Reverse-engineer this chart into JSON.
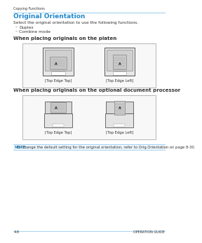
{
  "bg_color": "#ffffff",
  "header_text": "Copying Functions",
  "header_line_color": "#99ccee",
  "title": "Original Orientation",
  "title_color": "#2288cc",
  "title_fontsize": 6.5,
  "body_text": "Select the original orientation to use the following functions.",
  "bullet_items": [
    "Duplex",
    "Combine mode"
  ],
  "section1_title": "When placing originals on the platen",
  "section2_title": "When placing originals on the optional document processor",
  "label_top_edge_top": "[Top Edge Top]",
  "label_top_edge_left": "[Top Edge Left]",
  "note_bold": "NOTE:",
  "note_text": "  To change the default setting for the original orientation, refer to Orig.Orientation on page 8-30.",
  "note_color": "#2288cc",
  "footer_left": "4-8",
  "footer_right": "OPERATION GUIDE",
  "footer_line_color": "#99ccee",
  "box_border_color": "#aaaaaa",
  "copier_body_color": "#e0e0e0",
  "copier_dark_color": "#888888",
  "copier_outline_color": "#555555",
  "paper_color": "#d0d0d0",
  "paper_border_color": "#999999",
  "text_color": "#333333",
  "small_fontsize": 3.8,
  "body_fontsize": 4.2,
  "section_fontsize": 5.0,
  "header_fontsize": 3.5,
  "note_fontsize": 3.8,
  "footer_fontsize": 3.5
}
